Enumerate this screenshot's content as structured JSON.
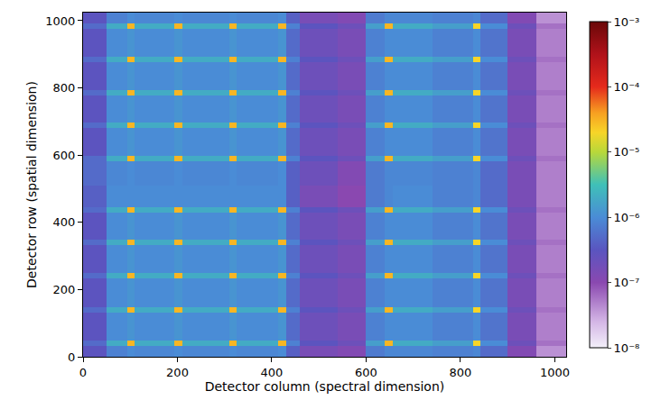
{
  "chart_data": {
    "type": "heatmap",
    "x_label": "Detector column (spectral dimension)",
    "y_label": "Detector row (spatial dimension)",
    "xlim": [
      0,
      1024
    ],
    "ylim": [
      0,
      1024
    ],
    "xticks": [
      0,
      200,
      400,
      600,
      800,
      1000
    ],
    "yticks": [
      0,
      200,
      400,
      600,
      800,
      1000
    ],
    "x_edges": [
      0,
      50,
      94,
      110,
      194,
      210,
      310,
      326,
      414,
      430,
      460,
      540,
      600,
      640,
      656,
      740,
      827,
      843,
      900,
      960,
      1024
    ],
    "y_edges": [
      0,
      32,
      48,
      132,
      148,
      232,
      248,
      332,
      348,
      429,
      445,
      510,
      582,
      598,
      680,
      696,
      777,
      793,
      877,
      893,
      977,
      993,
      1024
    ],
    "z": [
      [
        3e-07,
        8e-07,
        1e-06,
        9e-07,
        1e-06,
        9e-07,
        1e-06,
        9e-07,
        1e-06,
        4e-07,
        1.5e-07,
        1.2e-07,
        7e-07,
        9e-07,
        9e-07,
        8e-07,
        9e-07,
        5e-07,
        1.2e-07,
        4e-08
      ],
      [
        5e-07,
        2e-06,
        3e-05,
        2e-06,
        3e-05,
        2e-06,
        3e-05,
        2e-06,
        3e-05,
        8e-07,
        3e-07,
        2e-07,
        1.5e-06,
        3e-05,
        2e-06,
        1.5e-06,
        2e-05,
        1e-06,
        2e-07,
        6e-08
      ],
      [
        3e-07,
        1e-06,
        1.2e-06,
        1e-06,
        1.2e-06,
        1e-06,
        1.2e-06,
        1e-06,
        1.2e-06,
        5e-07,
        2e-07,
        1.5e-07,
        8e-07,
        1e-06,
        1e-06,
        8e-07,
        1e-06,
        6e-07,
        1.5e-07,
        5e-08
      ],
      [
        5e-07,
        2e-06,
        3e-05,
        2e-06,
        3e-05,
        2e-06,
        3e-05,
        2e-06,
        3e-05,
        8e-07,
        3e-07,
        2e-07,
        1.5e-06,
        3e-05,
        2e-06,
        1.5e-06,
        2e-05,
        1e-06,
        2e-07,
        6e-08
      ],
      [
        3e-07,
        1e-06,
        1.2e-06,
        1e-06,
        1.2e-06,
        1e-06,
        1.2e-06,
        1e-06,
        1.2e-06,
        5e-07,
        2e-07,
        1.5e-07,
        8e-07,
        1e-06,
        1e-06,
        8e-07,
        1e-06,
        6e-07,
        1.5e-07,
        5e-08
      ],
      [
        5e-07,
        2e-06,
        3e-05,
        2e-06,
        3e-05,
        2e-06,
        3e-05,
        2e-06,
        3e-05,
        8e-07,
        3e-07,
        2e-07,
        1.5e-06,
        3e-05,
        2e-06,
        1.5e-06,
        2e-05,
        1e-06,
        2e-07,
        6e-08
      ],
      [
        3e-07,
        1e-06,
        1.2e-06,
        1e-06,
        1.2e-06,
        1e-06,
        1.2e-06,
        1e-06,
        1.2e-06,
        5e-07,
        2e-07,
        1.5e-07,
        8e-07,
        1e-06,
        1e-06,
        8e-07,
        1e-06,
        6e-07,
        1.5e-07,
        5e-08
      ],
      [
        5e-07,
        2e-06,
        3e-05,
        2e-06,
        3e-05,
        2e-06,
        3e-05,
        2e-06,
        3e-05,
        8e-07,
        3e-07,
        2e-07,
        1.5e-06,
        3e-05,
        2e-06,
        1.5e-06,
        2e-05,
        1e-06,
        2e-07,
        6e-08
      ],
      [
        3e-07,
        1e-06,
        1.2e-06,
        1e-06,
        1.2e-06,
        1e-06,
        1.2e-06,
        1e-06,
        1.2e-06,
        5e-07,
        2e-07,
        1.5e-07,
        8e-07,
        1e-06,
        1e-06,
        8e-07,
        1e-06,
        6e-07,
        1.5e-07,
        5e-08
      ],
      [
        5e-07,
        2e-06,
        3e-05,
        2e-06,
        3e-05,
        2e-06,
        3e-05,
        2e-06,
        3e-05,
        8e-07,
        3e-07,
        2e-07,
        1.5e-06,
        3e-05,
        2e-06,
        1.5e-06,
        2e-05,
        1e-06,
        2e-07,
        6e-08
      ],
      [
        4e-07,
        1e-06,
        1e-06,
        1e-06,
        1e-06,
        1e-06,
        1e-06,
        1e-06,
        1e-06,
        4e-07,
        1.5e-07,
        1e-07,
        7e-07,
        9e-07,
        1e-06,
        8e-07,
        9e-07,
        5e-07,
        1.5e-07,
        5e-08
      ],
      [
        5e-07,
        9e-07,
        1e-06,
        9e-07,
        1e-06,
        9e-07,
        1e-06,
        9e-07,
        1e-06,
        4e-07,
        2e-07,
        1.2e-07,
        7e-07,
        9e-07,
        9e-07,
        8e-07,
        9e-07,
        5e-07,
        1.5e-07,
        5e-08
      ],
      [
        5e-07,
        2e-06,
        3e-05,
        2e-06,
        3e-05,
        2e-06,
        3e-05,
        2e-06,
        3e-05,
        8e-07,
        3e-07,
        2e-07,
        1.5e-06,
        3e-05,
        2e-06,
        1.5e-06,
        2e-05,
        1e-06,
        2e-07,
        6e-08
      ],
      [
        3e-07,
        1e-06,
        1.2e-06,
        1e-06,
        1.2e-06,
        1e-06,
        1.2e-06,
        1e-06,
        1.2e-06,
        5e-07,
        2e-07,
        1.5e-07,
        8e-07,
        1e-06,
        1e-06,
        8e-07,
        1e-06,
        6e-07,
        1.5e-07,
        5e-08
      ],
      [
        5e-07,
        2e-06,
        3e-05,
        2e-06,
        3e-05,
        2e-06,
        3e-05,
        2e-06,
        3e-05,
        8e-07,
        3e-07,
        2e-07,
        1.5e-06,
        3e-05,
        2e-06,
        1.5e-06,
        2e-05,
        1e-06,
        2e-07,
        6e-08
      ],
      [
        3e-07,
        1e-06,
        1.2e-06,
        1e-06,
        1.2e-06,
        1e-06,
        1.2e-06,
        1e-06,
        1.2e-06,
        5e-07,
        2e-07,
        1.5e-07,
        8e-07,
        1e-06,
        1e-06,
        8e-07,
        1e-06,
        6e-07,
        1.5e-07,
        5e-08
      ],
      [
        5e-07,
        2e-06,
        3e-05,
        2e-06,
        3e-05,
        2e-06,
        3e-05,
        2e-06,
        3e-05,
        8e-07,
        3e-07,
        2e-07,
        1.5e-06,
        3e-05,
        2e-06,
        1.5e-06,
        2e-05,
        1e-06,
        2e-07,
        6e-08
      ],
      [
        3e-07,
        1e-06,
        1.2e-06,
        1e-06,
        1.2e-06,
        1e-06,
        1.2e-06,
        1e-06,
        1.2e-06,
        5e-07,
        2e-07,
        1.5e-07,
        8e-07,
        1e-06,
        1e-06,
        8e-07,
        1e-06,
        6e-07,
        1.5e-07,
        5e-08
      ],
      [
        5e-07,
        2e-06,
        3e-05,
        2e-06,
        3e-05,
        2e-06,
        3e-05,
        2e-06,
        3e-05,
        8e-07,
        3e-07,
        2e-07,
        1.5e-06,
        3e-05,
        2e-06,
        1.5e-06,
        2e-05,
        1e-06,
        2e-07,
        6e-08
      ],
      [
        3e-07,
        1e-06,
        1.2e-06,
        1e-06,
        1.2e-06,
        1e-06,
        1.2e-06,
        1e-06,
        1.2e-06,
        5e-07,
        2e-07,
        1.5e-07,
        8e-07,
        1e-06,
        1e-06,
        8e-07,
        1e-06,
        6e-07,
        1.5e-07,
        5e-08
      ],
      [
        5e-07,
        2e-06,
        3e-05,
        2e-06,
        3e-05,
        2e-06,
        3e-05,
        2e-06,
        3e-05,
        8e-07,
        3e-07,
        2e-07,
        1.5e-06,
        3e-05,
        2e-06,
        1.5e-06,
        2e-05,
        1e-06,
        2e-07,
        6e-08
      ],
      [
        3e-07,
        8e-07,
        1e-06,
        9e-07,
        1e-06,
        9e-07,
        1e-06,
        9e-07,
        1e-06,
        4e-07,
        1.5e-07,
        1.2e-07,
        7e-07,
        9e-07,
        9e-07,
        8e-07,
        9e-07,
        5e-07,
        1.2e-07,
        4e-08
      ]
    ],
    "colorbar": {
      "range": [
        1e-08,
        0.001
      ],
      "ticks": [
        {
          "value": 1e-08,
          "label": "10⁻⁸"
        },
        {
          "value": 1e-07,
          "label": "10⁻⁷"
        },
        {
          "value": 1e-06,
          "label": "10⁻⁶"
        },
        {
          "value": 1e-05,
          "label": "10⁻⁵"
        },
        {
          "value": 0.0001,
          "label": "10⁻⁴"
        },
        {
          "value": 0.001,
          "label": "10⁻³"
        }
      ]
    }
  }
}
